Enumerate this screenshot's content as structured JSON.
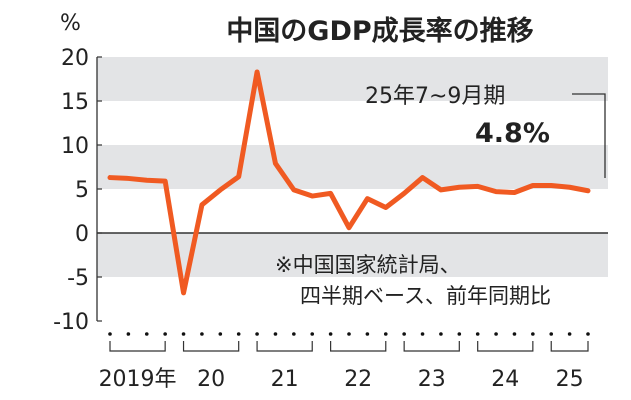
{
  "chart_data": {
    "type": "line",
    "title": "中国のGDP成長率の推移",
    "ylabel": "%",
    "ylim": [
      -10,
      20
    ],
    "yticks": [
      20,
      15,
      10,
      5,
      0,
      -5,
      -10
    ],
    "year_labels": [
      "2019年",
      "20",
      "21",
      "22",
      "23",
      "24",
      "25"
    ],
    "year_quarters": [
      4,
      4,
      4,
      4,
      4,
      4,
      3
    ],
    "x": [
      "2019Q1",
      "2019Q2",
      "2019Q3",
      "2019Q4",
      "2020Q1",
      "2020Q2",
      "2020Q3",
      "2020Q4",
      "2021Q1",
      "2021Q2",
      "2021Q3",
      "2021Q4",
      "2022Q1",
      "2022Q2",
      "2022Q3",
      "2022Q4",
      "2023Q1",
      "2023Q2",
      "2023Q3",
      "2023Q4",
      "2024Q1",
      "2024Q2",
      "2024Q3",
      "2024Q4",
      "2025Q1",
      "2025Q2",
      "2025Q3"
    ],
    "values": [
      6.3,
      6.2,
      6.0,
      5.9,
      -6.8,
      3.2,
      4.9,
      6.4,
      18.3,
      7.9,
      4.9,
      4.2,
      4.5,
      0.6,
      3.9,
      2.9,
      4.5,
      6.3,
      4.9,
      5.2,
      5.3,
      4.7,
      4.6,
      5.4,
      5.4,
      5.2,
      4.8
    ],
    "shaded_bands": [
      [
        15,
        20
      ],
      [
        5,
        10
      ],
      [
        -5,
        0
      ]
    ],
    "annotation": {
      "period": "25年7~9月期",
      "value": "4.8%"
    },
    "note": [
      "※中国国家統計局、",
      "四半期ベース、前年同期比"
    ],
    "colors": {
      "line": "#f05a22",
      "band": "#e3e4e6",
      "text": "#222222"
    }
  }
}
